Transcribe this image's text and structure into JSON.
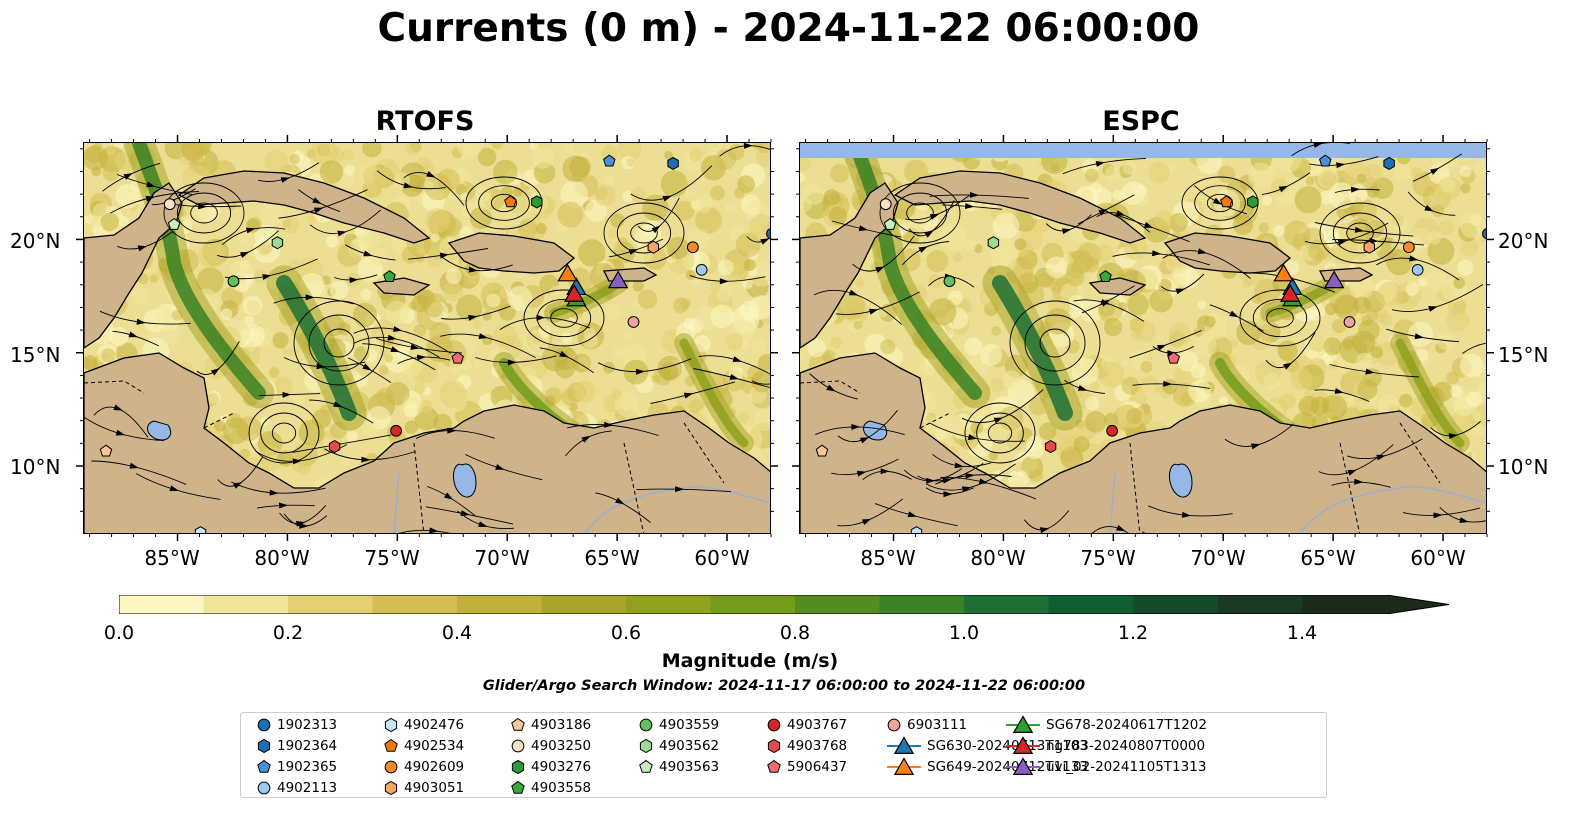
{
  "title": "Currents (0 m) - 2024-11-22 06:00:00",
  "panels": [
    {
      "title": "RTOFS"
    },
    {
      "title": "ESPC"
    }
  ],
  "axes": {
    "lat_ticks": [
      "20°N",
      "15°N",
      "10°N"
    ],
    "lon_ticks": [
      "85°W",
      "80°W",
      "75°W",
      "70°W",
      "65°W",
      "60°W"
    ],
    "lon_range": [
      -89.3,
      -58.0
    ],
    "lat_range": [
      7.0,
      24.3
    ]
  },
  "colorbar": {
    "label": "Magnitude (m/s)",
    "ticks": [
      "0.0",
      "0.2",
      "0.4",
      "0.6",
      "0.8",
      "1.0",
      "1.2",
      "1.4"
    ],
    "range": [
      0,
      1.5
    ],
    "extend": "max",
    "colors": [
      "#fdf7c3",
      "#f1e59a",
      "#e3d072",
      "#d4bd52",
      "#c2b03d",
      "#a9a52b",
      "#8fa11d",
      "#729c1a",
      "#558e1f",
      "#3b8125",
      "#1f7035",
      "#125e33",
      "#154a2b",
      "#193923",
      "#1c2a1b"
    ]
  },
  "search_window": "Glider/Argo Search Window: 2024-11-17 06:00:00 to 2024-11-22 06:00:00",
  "map_colors": {
    "land": "#cfb38a",
    "ocean_base": "#ecdf94",
    "lake": "#96b8e6",
    "river": "#99b0cf",
    "mask": "#96b8e6"
  },
  "legend": [
    {
      "label": "1902313",
      "marker": "circle",
      "color": "#1f6db5"
    },
    {
      "label": "1902364",
      "marker": "hexagon",
      "color": "#1f6db5"
    },
    {
      "label": "1902365",
      "marker": "pentagon",
      "color": "#4a90d9"
    },
    {
      "label": "4902113",
      "marker": "circle",
      "color": "#9dc8f0"
    },
    {
      "label": "4902476",
      "marker": "hexagon",
      "color": "#c6e2f7"
    },
    {
      "label": "4902534",
      "marker": "pentagon",
      "color": "#f07a12"
    },
    {
      "label": "4902609",
      "marker": "circle",
      "color": "#f48a30"
    },
    {
      "label": "4903051",
      "marker": "hexagon",
      "color": "#f5a462"
    },
    {
      "label": "4903186",
      "marker": "pentagon",
      "color": "#f7c79a"
    },
    {
      "label": "4903250",
      "marker": "circle",
      "color": "#fbe0c8"
    },
    {
      "label": "4903276",
      "marker": "hexagon",
      "color": "#2e9a36"
    },
    {
      "label": "4903558",
      "marker": "pentagon",
      "color": "#3aa63e"
    },
    {
      "label": "4903559",
      "marker": "circle",
      "color": "#62c15e"
    },
    {
      "label": "4903562",
      "marker": "hexagon",
      "color": "#9ddc8f"
    },
    {
      "label": "4903563",
      "marker": "pentagon",
      "color": "#c8efc0"
    },
    {
      "label": "4903767",
      "marker": "circle",
      "color": "#d62728"
    },
    {
      "label": "4903768",
      "marker": "hexagon",
      "color": "#e34a4a"
    },
    {
      "label": "5906437",
      "marker": "pentagon",
      "color": "#ee6b74"
    },
    {
      "label": "6903111",
      "marker": "circle",
      "color": "#f4a0a0"
    },
    {
      "label": "SG630-20240713T1103",
      "marker": "triangle",
      "color": "#1f77b4"
    },
    {
      "label": "SG649-20240712T1133",
      "marker": "triangle",
      "color": "#ff7f0e"
    },
    {
      "label": "SG678-20240617T1202",
      "marker": "triangle",
      "color": "#2ca02c"
    },
    {
      "label": "ng783-20240807T0000",
      "marker": "triangle",
      "color": "#d62728"
    },
    {
      "label": "uvi_02-20241105T1313",
      "marker": "triangle",
      "color": "#8a5fc2"
    }
  ],
  "platform_positions": [
    {
      "id": "1902313",
      "lon": -58.0,
      "lat": 20.3
    },
    {
      "id": "1902364",
      "lon": -62.5,
      "lat": 23.4
    },
    {
      "id": "1902365",
      "lon": -65.4,
      "lat": 23.5
    },
    {
      "id": "4902113",
      "lon": -61.2,
      "lat": 18.7
    },
    {
      "id": "4902476",
      "lon": -84.0,
      "lat": 7.1
    },
    {
      "id": "4902534",
      "lon": -69.9,
      "lat": 21.7
    },
    {
      "id": "4902609",
      "lon": -61.6,
      "lat": 19.7
    },
    {
      "id": "4903051",
      "lon": -63.4,
      "lat": 19.7
    },
    {
      "id": "4903186",
      "lon": -88.3,
      "lat": 10.7
    },
    {
      "id": "4903250",
      "lon": -85.4,
      "lat": 21.6
    },
    {
      "id": "4903276",
      "lon": -68.7,
      "lat": 21.7
    },
    {
      "id": "4903558",
      "lon": -75.4,
      "lat": 18.4
    },
    {
      "id": "4903559",
      "lon": -82.5,
      "lat": 18.2
    },
    {
      "id": "4903562",
      "lon": -80.5,
      "lat": 19.9
    },
    {
      "id": "4903563",
      "lon": -85.2,
      "lat": 20.7
    },
    {
      "id": "4903767",
      "lon": -75.1,
      "lat": 11.6
    },
    {
      "id": "4903768",
      "lon": -77.9,
      "lat": 10.9
    },
    {
      "id": "5906437",
      "lon": -72.3,
      "lat": 14.8
    },
    {
      "id": "6903111",
      "lon": -64.3,
      "lat": 16.4
    },
    {
      "id": "SG630-20240713T1103",
      "lon": -66.9,
      "lat": 17.9
    },
    {
      "id": "SG649-20240712T1133",
      "lon": -67.3,
      "lat": 18.5
    },
    {
      "id": "SG678-20240617T1202",
      "lon": -66.9,
      "lat": 17.4
    },
    {
      "id": "ng783-20240807T0000",
      "lon": -67.0,
      "lat": 17.6
    },
    {
      "id": "uvi_02-20241105T1313",
      "lon": -65.0,
      "lat": 18.2
    }
  ]
}
